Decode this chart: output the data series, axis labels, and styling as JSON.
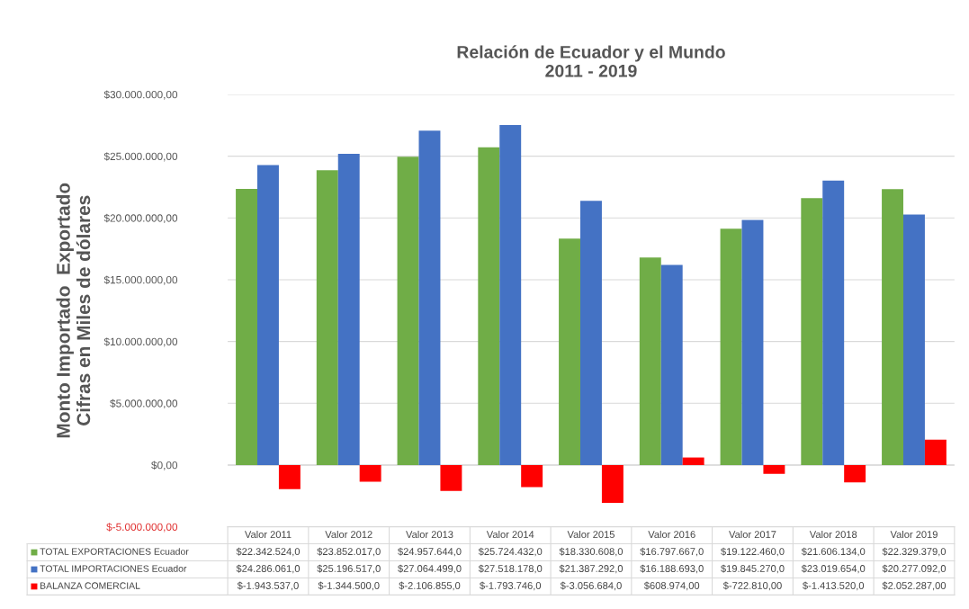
{
  "chart_data": {
    "type": "bar",
    "title": "Relación de Ecuador y el Mundo\n2011 - 2019",
    "ylabel": "Monto Importado  Exportado\nCifras en Miles de dólares",
    "categories": [
      "Valor 2011",
      "Valor 2012",
      "Valor 2013",
      "Valor 2014",
      "Valor 2015",
      "Valor 2016",
      "Valor 2017",
      "Valor 2018",
      "Valor 2019"
    ],
    "series": [
      {
        "name": "TOTAL EXPORTACIONES Ecuador",
        "color": "#70ad47",
        "values": [
          22342524,
          23852017,
          24957644,
          25724432,
          18330608,
          16797667,
          19122460,
          21606134,
          22329379
        ],
        "value_labels": [
          "$22.342.524,0",
          "$23.852.017,0",
          "$24.957.644,0",
          "$25.724.432,0",
          "$18.330.608,0",
          "$16.797.667,0",
          "$19.122.460,0",
          "$21.606.134,0",
          "$22.329.379,0"
        ]
      },
      {
        "name": "TOTAL IMPORTACIONES Ecuador",
        "color": "#4472c4",
        "values": [
          24286061,
          25196517,
          27064499,
          27518178,
          21387292,
          16188693,
          19845270,
          23019654,
          20277092
        ],
        "value_labels": [
          "$24.286.061,0",
          "$25.196.517,0",
          "$27.064.499,0",
          "$27.518.178,0",
          "$21.387.292,0",
          "$16.188.693,0",
          "$19.845.270,0",
          "$23.019.654,0",
          "$20.277.092,0"
        ]
      },
      {
        "name": "BALANZA COMERCIAL",
        "color": "#ff0000",
        "values": [
          -1943537,
          -1344500,
          -2106855,
          -1793746,
          -3056684,
          608974,
          -722810,
          -1413520,
          2052287
        ],
        "value_labels": [
          "$-1.943.537,0",
          "$-1.344.500,0",
          "$-2.106.855,0",
          "$-1.793.746,0",
          "$-3.056.684,0",
          "$608.974,00",
          "$-722.810,00",
          "$-1.413.520,0",
          "$2.052.287,00"
        ]
      }
    ],
    "ylim": [
      -5000000,
      30000000
    ],
    "yticks": [
      {
        "value": -5000000,
        "label": "$-5.000.000,00"
      },
      {
        "value": 0,
        "label": "$0,00"
      },
      {
        "value": 5000000,
        "label": "$5.000.000,00"
      },
      {
        "value": 10000000,
        "label": "$10.000.000,00"
      },
      {
        "value": 15000000,
        "label": "$15.000.000,00"
      },
      {
        "value": 20000000,
        "label": "$20.000.000,00"
      },
      {
        "value": 25000000,
        "label": "$25.000.000,00"
      },
      {
        "value": 30000000,
        "label": "$30.000.000,00"
      }
    ],
    "grid": "y",
    "legend": "bottom"
  }
}
